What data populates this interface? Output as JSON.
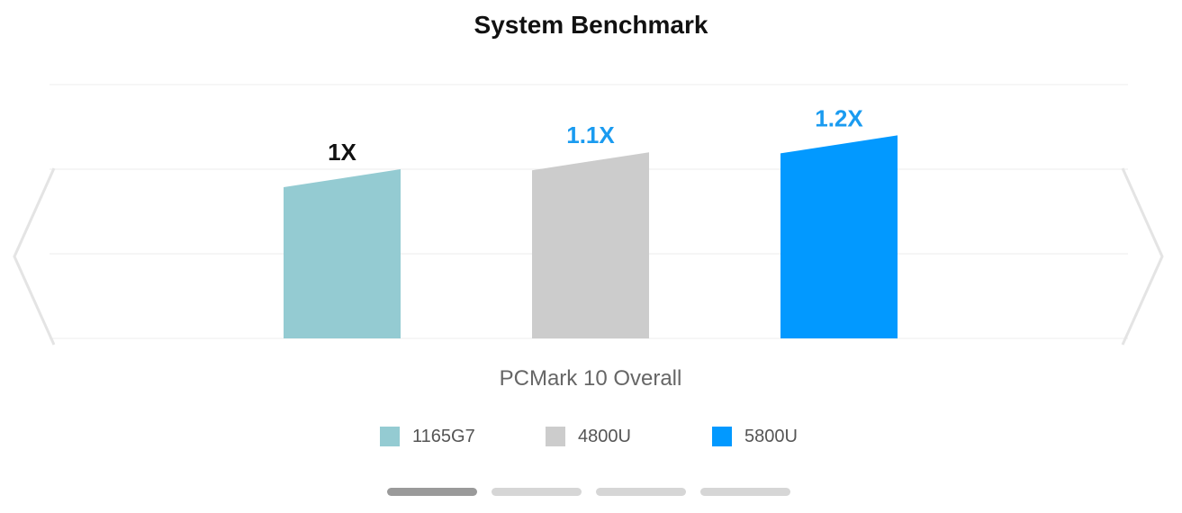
{
  "chart_data": {
    "type": "bar",
    "title": "System Benchmark",
    "xlabel": "PCMark 10 Overall",
    "ylabel": "",
    "categories": [
      "PCMark 10 Overall"
    ],
    "series": [
      {
        "name": "1165G7",
        "values": [
          1.0
        ],
        "label": "1X",
        "color": "#94cbd2",
        "label_color": "#111111"
      },
      {
        "name": "4800U",
        "values": [
          1.1
        ],
        "label": "1.1X",
        "color": "#cccccc",
        "label_color": "#1a9bf0"
      },
      {
        "name": "5800U",
        "values": [
          1.2
        ],
        "label": "1.2X",
        "color": "#0299ff",
        "label_color": "#1a9bf0"
      }
    ],
    "ylim": [
      0,
      1.5
    ],
    "grid": true,
    "legend_position": "bottom"
  },
  "pager": {
    "pages": 4,
    "active": 0
  },
  "navigation": {
    "prev_icon": "chevron-left-icon",
    "next_icon": "chevron-right-icon"
  }
}
